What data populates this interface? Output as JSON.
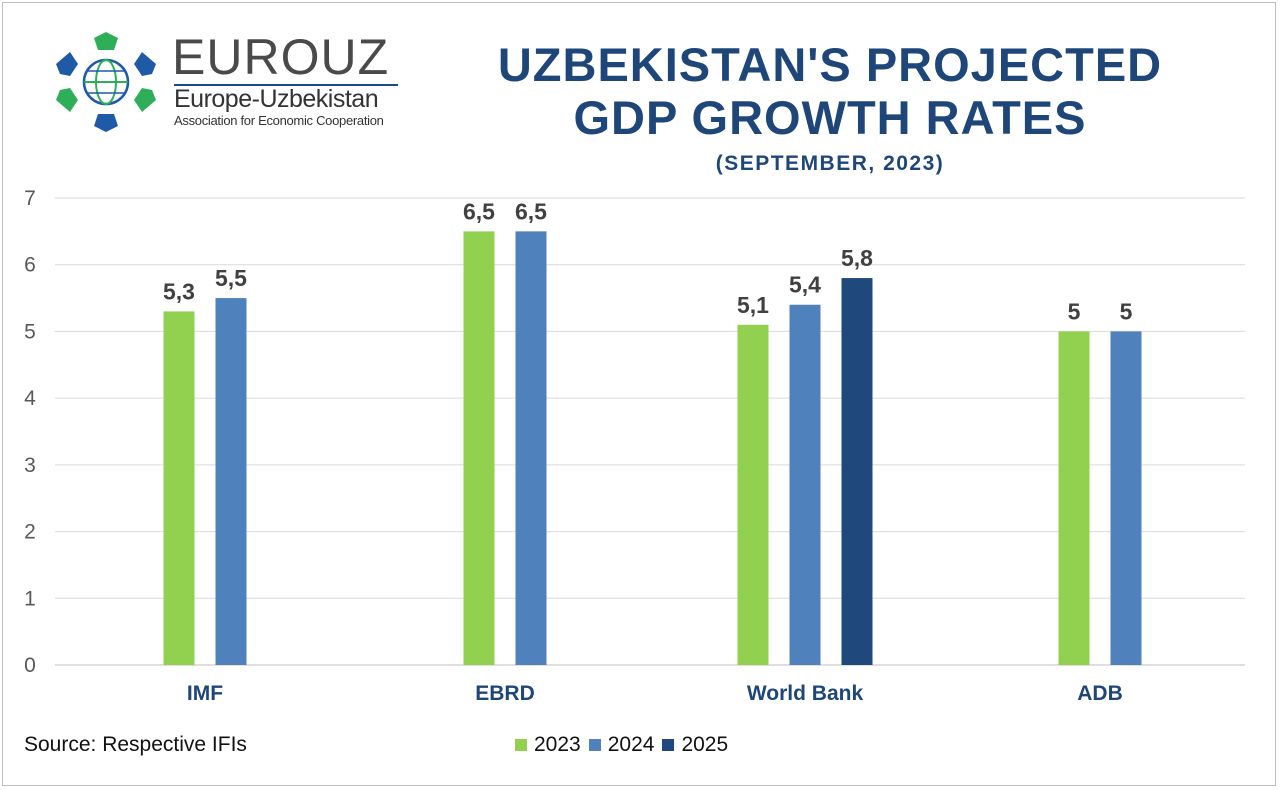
{
  "logo": {
    "name": "EUROUZ",
    "subtitle": "Europe-Uzbekistan",
    "tagline": "Association for Economic Cooperation"
  },
  "title_line1": "UZBEKISTAN'S PROJECTED",
  "title_line2": "GDP GROWTH RATES",
  "subtitle": "(SEPTEMBER, 2023)",
  "source": "Source: Respective IFIs",
  "colors": {
    "title": "#1f4679",
    "category_label": "#1f4679",
    "grid": "#d9d9d9",
    "axis_text": "#595959",
    "value_label": "#404040"
  },
  "chart_data": {
    "type": "bar",
    "categories": [
      "IMF",
      "EBRD",
      "World Bank",
      "ADB"
    ],
    "series": [
      {
        "name": "2023",
        "color": "#92d050",
        "values": [
          5.3,
          6.5,
          5.1,
          5
        ]
      },
      {
        "name": "2024",
        "color": "#4f81bd",
        "values": [
          5.5,
          6.5,
          5.4,
          5
        ]
      },
      {
        "name": "2025",
        "color": "#1f497d",
        "values": [
          null,
          null,
          5.8,
          null
        ]
      }
    ],
    "value_labels": [
      [
        "5,3",
        "6,5",
        "5,1",
        "5"
      ],
      [
        "5,5",
        "6,5",
        "5,4",
        "5"
      ],
      [
        null,
        null,
        "5,8",
        null
      ]
    ],
    "ylim": [
      0,
      7
    ],
    "yticks": [
      "0",
      "1",
      "2",
      "3",
      "4",
      "5",
      "6",
      "7"
    ],
    "grid": true,
    "legend_position": "bottom"
  }
}
